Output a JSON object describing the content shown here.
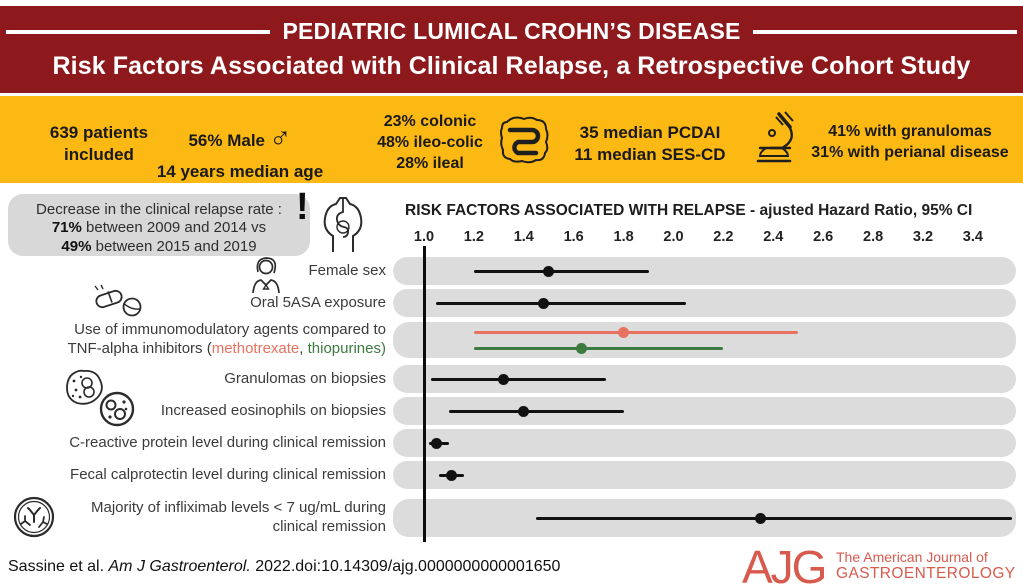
{
  "header": {
    "title": "PEDIATRIC LUMICAL CROHN’S DISEASE",
    "subtitle": "Risk Factors Associated with Clinical Relapse, a Retrospective Cohort Study"
  },
  "stats_band": {
    "patients": [
      "639 patients",
      "included"
    ],
    "male_pct": "56% Male",
    "median_age": "14 years median age",
    "location": [
      "23% colonic",
      "48% ileo-colic",
      "28% ileal"
    ],
    "scores": [
      "35 median PCDAI",
      "11 median SES-CD"
    ],
    "pathology": [
      "41% with granulomas",
      "31% with perianal disease"
    ]
  },
  "note_box": {
    "line1": "Decrease in the clinical relapse rate :",
    "pct1": "71%",
    "line2": " between 2009 and 2014 vs",
    "pct2": "49%",
    "line3": " between 2015 and 2019",
    "mark": "!"
  },
  "chart_data": {
    "type": "forest",
    "title": "RISK FACTORS ASSOCIATED WITH RELAPSE",
    "title_suffix": " -  ajusted Hazard Ratio, 95% CI",
    "x_ticks": [
      1.0,
      1.2,
      1.4,
      1.6,
      1.8,
      2.0,
      2.2,
      2.4,
      2.6,
      2.8,
      3.2,
      3.4
    ],
    "x_tick_labels": [
      "1.0",
      "1.2",
      "1.4",
      "1.6",
      "1.8",
      "2.0",
      "2.2",
      "2.4",
      "2.6",
      "2.8",
      "3.2",
      "3.4"
    ],
    "reference_value": 1.0,
    "legend_position": "none",
    "grid": false,
    "rows": [
      {
        "label_lines": [
          [
            {
              "t": "Female sex"
            }
          ]
        ],
        "series": [
          {
            "name": "Female sex",
            "hr": 1.5,
            "ci": [
              1.2,
              1.9
            ],
            "color": "#111111"
          }
        ]
      },
      {
        "label_lines": [
          [
            {
              "t": "Oral 5ASA exposure"
            }
          ]
        ],
        "series": [
          {
            "name": "Oral 5ASA exposure",
            "hr": 1.48,
            "ci": [
              1.05,
              2.05
            ],
            "color": "#111111"
          }
        ]
      },
      {
        "label_lines": [
          [
            {
              "t": "Use of immunomodulatory agents compared to"
            }
          ],
          [
            {
              "t": "TNF-alpha inhibitors ("
            },
            {
              "t": "methotrexate",
              "c": "#e8715f"
            },
            {
              "t": ", "
            },
            {
              "t": "thiopurines",
              "c": "#3c7a40"
            },
            {
              "t": ")",
              "c": "#3c7a40"
            }
          ]
        ],
        "series": [
          {
            "name": "methotrexate",
            "hr": 1.8,
            "ci": [
              1.2,
              2.5
            ],
            "color": "#e8715f"
          },
          {
            "name": "thiopurines",
            "hr": 1.63,
            "ci": [
              1.2,
              2.2
            ],
            "color": "#3c7a40"
          }
        ]
      },
      {
        "label_lines": [
          [
            {
              "t": "Granulomas on biopsies"
            }
          ]
        ],
        "series": [
          {
            "name": "Granulomas on biopsies",
            "hr": 1.32,
            "ci": [
              1.03,
              1.73
            ],
            "color": "#111111"
          }
        ]
      },
      {
        "label_lines": [
          [
            {
              "t": "Increased eosinophils on biopsies"
            }
          ]
        ],
        "series": [
          {
            "name": "Increased eosinophils on biopsies",
            "hr": 1.4,
            "ci": [
              1.1,
              1.8
            ],
            "color": "#111111"
          }
        ]
      },
      {
        "label_lines": [
          [
            {
              "t": "C-reactive protein level during clinical remission"
            }
          ]
        ],
        "series": [
          {
            "name": "C-reactive protein",
            "hr": 1.05,
            "ci": [
              1.02,
              1.1
            ],
            "color": "#111111"
          }
        ]
      },
      {
        "label_lines": [
          [
            {
              "t": "Fecal calprotectin level during clinical remission"
            }
          ]
        ],
        "series": [
          {
            "name": "Fecal calprotectin",
            "hr": 1.11,
            "ci": [
              1.06,
              1.16
            ],
            "color": "#111111"
          }
        ]
      },
      {
        "label_lines": [
          [
            {
              "t": "Majority of infliximab levels < 7 ug/mL during"
            }
          ],
          [
            {
              "t": "clinical remission"
            }
          ]
        ],
        "series": [
          {
            "name": "Infliximab < 7 ug/mL",
            "hr": 2.35,
            "ci": [
              1.45,
              3.6
            ],
            "color": "#111111"
          }
        ]
      }
    ]
  },
  "footer": {
    "citation_part1": "Sassine et al. ",
    "citation_italic": "Am J Gastroenterol.",
    "citation_part2": " 2022.doi:10.14309/ajg.0000000000001650",
    "logo_acronym": "AJG",
    "logo_line1": "The American Journal of",
    "logo_line2": "GASTROENTEROLOGY"
  },
  "icons": [
    "male-symbol-icon",
    "intestine-icon",
    "microscope-icon",
    "alert-exclamation-icon",
    "digestive-tract-icon",
    "female-icon",
    "pills-icon",
    "granuloma-cell-icon",
    "eosinophil-cell-icon",
    "antibody-icon"
  ],
  "colors": {
    "maroon": "#8d191d",
    "gold": "#fcb813",
    "track_gray": "#dcdcdc",
    "note_gray": "#d8d8d8",
    "methotrexate_red": "#e8715f",
    "thiopurines_green": "#3c7a40",
    "logo_red": "#d85a4d"
  }
}
